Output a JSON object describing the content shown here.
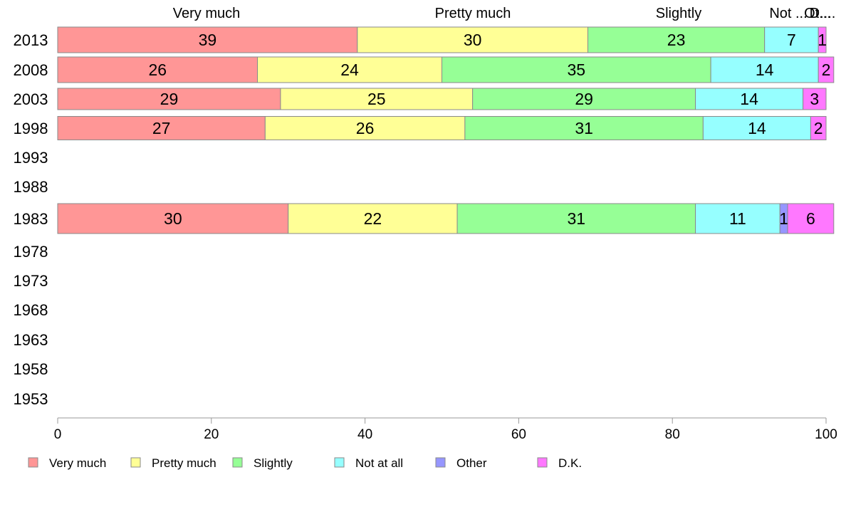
{
  "chart_data": {
    "type": "bar",
    "orientation": "horizontal",
    "stacked": true,
    "categories": [
      "2013",
      "2008",
      "2003",
      "1998",
      "1993",
      "1988",
      "1983",
      "1978",
      "1973",
      "1968",
      "1963",
      "1958",
      "1953"
    ],
    "series": [
      {
        "name": "Very much",
        "color": "#ff9696",
        "values": [
          39,
          26,
          29,
          27,
          null,
          null,
          30,
          null,
          null,
          null,
          null,
          null,
          null
        ]
      },
      {
        "name": "Pretty much",
        "color": "#ffff96",
        "values": [
          30,
          24,
          25,
          26,
          null,
          null,
          22,
          null,
          null,
          null,
          null,
          null,
          null
        ]
      },
      {
        "name": "Slightly",
        "color": "#96ff96",
        "values": [
          23,
          35,
          29,
          31,
          null,
          null,
          31,
          null,
          null,
          null,
          null,
          null,
          null
        ]
      },
      {
        "name": "Not at all",
        "color": "#96ffff",
        "values": [
          7,
          14,
          14,
          14,
          null,
          null,
          11,
          null,
          null,
          null,
          null,
          null,
          null
        ]
      },
      {
        "name": "Other",
        "color": "#9696ff",
        "values": [
          0,
          0,
          0,
          0,
          null,
          null,
          1,
          null,
          null,
          null,
          null,
          null,
          null
        ]
      },
      {
        "name": "D.K.",
        "color": "#ff78ff",
        "values": [
          1,
          2,
          3,
          2,
          null,
          null,
          6,
          null,
          null,
          null,
          null,
          null,
          null
        ]
      }
    ],
    "top_labels": [
      "Very much",
      "Pretty much",
      "Slightly",
      "Not ...",
      "Ot...",
      "D...."
    ],
    "xlim": [
      0,
      100
    ],
    "xticks": [
      0,
      20,
      40,
      60,
      80,
      100
    ],
    "grid": false,
    "legend": "bottom"
  }
}
